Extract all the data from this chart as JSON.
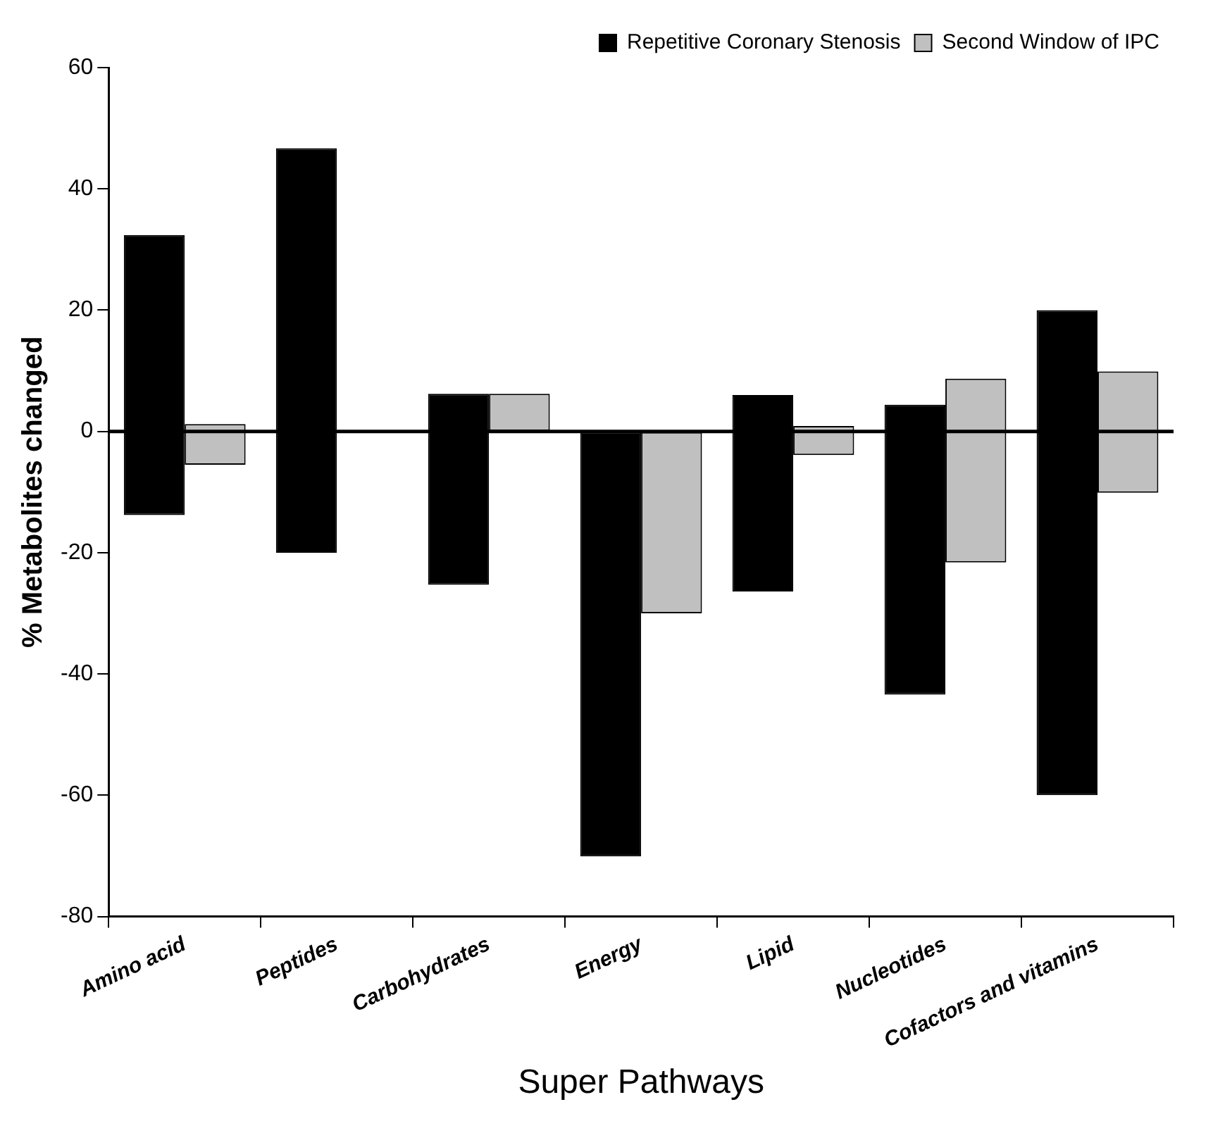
{
  "chart_data": {
    "type": "bar",
    "xlabel": "Super Pathways",
    "ylabel": "% Metabolites changed",
    "categories": [
      "Amino acid",
      "Peptides",
      "Carbohydrates",
      "Energy",
      "Lipid",
      "Nucleotides",
      "Cofactors and vitamins"
    ],
    "series": [
      {
        "name": "Repetitive Coronary Stenosis",
        "color": "#000000",
        "base": [
          -13.8,
          -20,
          -25.3,
          -70.1,
          -26.4,
          -43.4,
          -60
        ],
        "values": [
          46.2,
          66.7,
          31.5,
          70.1,
          32.4,
          47.8,
          80
        ]
      },
      {
        "name": "Second Window of IPC",
        "color": "#c0c0c0",
        "base": [
          -5.5,
          null,
          0,
          -30,
          -3.9,
          -21.6,
          -10.1
        ],
        "values": [
          6.7,
          null,
          6.2,
          30,
          4.8,
          30.3,
          20
        ]
      }
    ],
    "ylim": [
      -80,
      60
    ],
    "yticks": [
      -80,
      -60,
      -40,
      -20,
      0,
      20,
      40,
      60
    ],
    "ref_lines": [
      {
        "axis": "y",
        "value": 0,
        "color": "#000000"
      }
    ],
    "grid": false,
    "legend": "top right"
  }
}
